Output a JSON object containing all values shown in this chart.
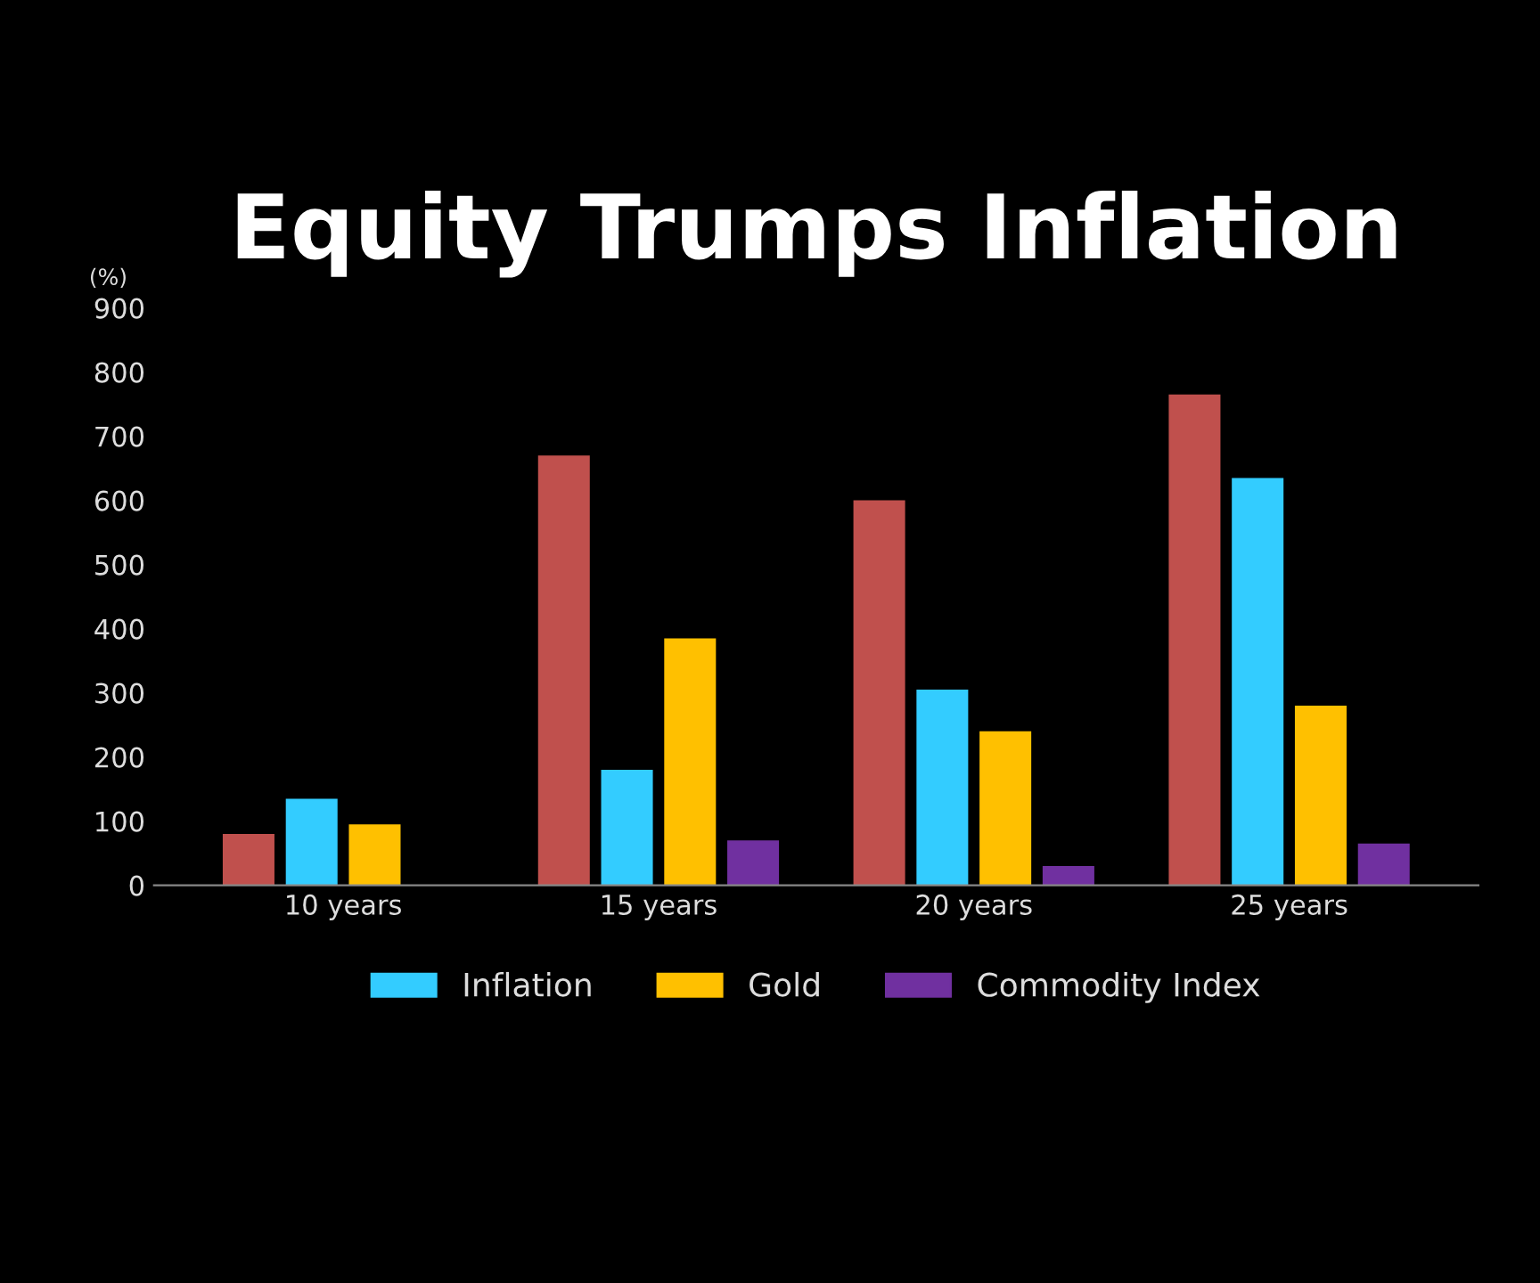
{
  "chart_data": {
    "type": "bar",
    "title": "Equity Trumps Inflation",
    "ylabel": "(%)",
    "categories": [
      "10 years",
      "15 years",
      "20 years",
      "25 years"
    ],
    "series": [
      {
        "color": "#c0504d",
        "values": [
          80,
          670,
          600,
          765
        ]
      },
      {
        "name": "Inflation",
        "color": "#33ccff",
        "values": [
          135,
          180,
          305,
          635
        ]
      },
      {
        "name": "Gold",
        "color": "#ffc000",
        "values": [
          95,
          385,
          240,
          280
        ]
      },
      {
        "name": "Commodity Index",
        "color": "#7030a0",
        "values": [
          null,
          70,
          30,
          65
        ]
      }
    ],
    "ylim": [
      0,
      900
    ],
    "yticks": [
      0,
      100,
      200,
      300,
      400,
      500,
      600,
      700,
      800,
      900
    ],
    "grid": false,
    "legend": "bottom"
  }
}
